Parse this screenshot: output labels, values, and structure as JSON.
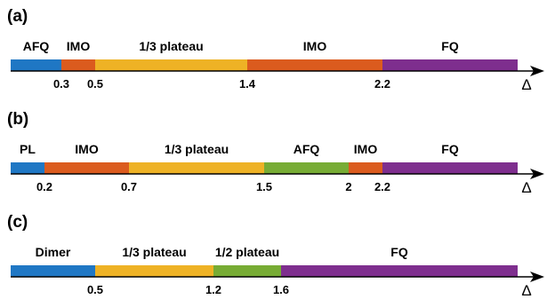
{
  "colors": {
    "blue": "#1f77c4",
    "orange": "#db5b1e",
    "yellow": "#eeb225",
    "green": "#77ac34",
    "purple": "#7e2e8e",
    "axis": "#000000"
  },
  "axis_symbol": "Δ",
  "panels": [
    {
      "label": "(a)",
      "segments": [
        {
          "name": "AFQ",
          "from": 0.0,
          "to": 0.3,
          "color": "blue"
        },
        {
          "name": "IMO",
          "from": 0.3,
          "to": 0.5,
          "color": "orange"
        },
        {
          "name": "1/3 plateau",
          "from": 0.5,
          "to": 1.4,
          "color": "yellow"
        },
        {
          "name": "IMO",
          "from": 1.4,
          "to": 2.2,
          "color": "orange"
        },
        {
          "name": "FQ",
          "from": 2.2,
          "to": 3.0,
          "color": "purple"
        }
      ],
      "ticks": [
        {
          "value": 0.3,
          "label": "0.3"
        },
        {
          "value": 0.5,
          "label": "0.5"
        },
        {
          "value": 1.4,
          "label": "1.4"
        },
        {
          "value": 2.2,
          "label": "2.2"
        }
      ]
    },
    {
      "label": "(b)",
      "segments": [
        {
          "name": "PL",
          "from": 0.0,
          "to": 0.2,
          "color": "blue"
        },
        {
          "name": "IMO",
          "from": 0.2,
          "to": 0.7,
          "color": "orange"
        },
        {
          "name": "1/3 plateau",
          "from": 0.7,
          "to": 1.5,
          "color": "yellow"
        },
        {
          "name": "AFQ",
          "from": 1.5,
          "to": 2.0,
          "color": "green"
        },
        {
          "name": "IMO",
          "from": 2.0,
          "to": 2.2,
          "color": "orange"
        },
        {
          "name": "FQ",
          "from": 2.2,
          "to": 3.0,
          "color": "purple"
        }
      ],
      "ticks": [
        {
          "value": 0.2,
          "label": "0.2"
        },
        {
          "value": 0.7,
          "label": "0.7"
        },
        {
          "value": 1.5,
          "label": "1.5"
        },
        {
          "value": 2.0,
          "label": "2"
        },
        {
          "value": 2.2,
          "label": "2.2"
        }
      ]
    },
    {
      "label": "(c)",
      "segments": [
        {
          "name": "Dimer",
          "from": 0.0,
          "to": 0.5,
          "color": "blue"
        },
        {
          "name": "1/3 plateau",
          "from": 0.5,
          "to": 1.2,
          "color": "yellow"
        },
        {
          "name": "1/2 plateau",
          "from": 1.2,
          "to": 1.6,
          "color": "green"
        },
        {
          "name": "FQ",
          "from": 1.6,
          "to": 3.0,
          "color": "purple"
        }
      ],
      "ticks": [
        {
          "value": 0.5,
          "label": "0.5"
        },
        {
          "value": 1.2,
          "label": "1.2"
        },
        {
          "value": 1.6,
          "label": "1.6"
        }
      ]
    }
  ]
}
